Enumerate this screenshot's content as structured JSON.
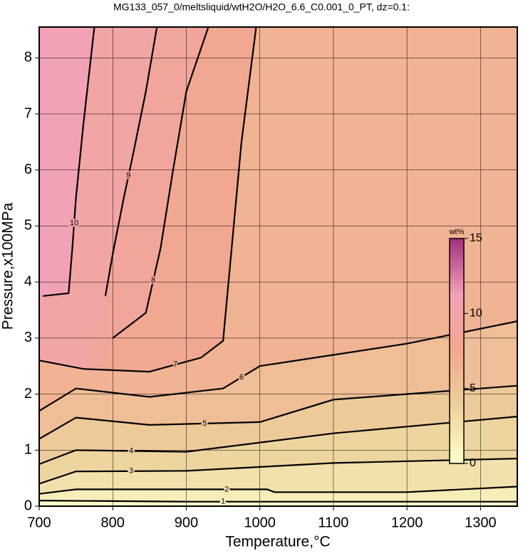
{
  "chart_data": {
    "type": "contour",
    "title": "MG133_057_0/meltsliquid/wtH2O/H2O_6.6_C0.001_0_PT, dz=0.1:",
    "x_label": "Temperature,°C",
    "y_label": "Pressure,x100MPa",
    "xlim": [
      700,
      1350
    ],
    "ylim": [
      0,
      8.55
    ],
    "xticks": [
      700,
      800,
      900,
      1000,
      1100,
      1200,
      1300
    ],
    "yticks": [
      0,
      1,
      2,
      3,
      4,
      5,
      6,
      7,
      8
    ],
    "grid": true,
    "background": "#f3a2b6",
    "colormap": [
      "#ffffcc",
      "#ecd29c",
      "#f2a890",
      "#f2a2b8",
      "#a0307e"
    ],
    "series": [
      {
        "name": "10",
        "x": [
          705,
          740,
          745,
          750,
          760,
          775
        ],
        "values": [
          3.75,
          3.8,
          4.6,
          5.5,
          6.8,
          8.55
        ]
      },
      {
        "name": "9",
        "x": [
          790,
          800,
          815,
          828,
          845,
          860
        ],
        "values": [
          3.75,
          4.5,
          5.5,
          6.3,
          7.4,
          8.55
        ]
      },
      {
        "name": "8",
        "x": [
          800,
          830,
          845,
          865,
          882,
          900,
          930
        ],
        "values": [
          3.0,
          3.3,
          3.45,
          4.6,
          6.0,
          7.4,
          8.55
        ]
      },
      {
        "name": "7",
        "x": [
          700,
          760,
          850,
          920,
          950,
          975,
          995
        ],
        "values": [
          2.6,
          2.45,
          2.4,
          2.65,
          2.95,
          6.5,
          8.55
        ]
      },
      {
        "name": "6",
        "x": [
          700,
          750,
          850,
          950,
          1000,
          1100,
          1200,
          1350
        ],
        "values": [
          1.7,
          2.1,
          1.95,
          2.1,
          2.5,
          2.7,
          2.9,
          3.3
        ]
      },
      {
        "name": "5",
        "x": [
          700,
          750,
          850,
          1000,
          1100,
          1250,
          1350
        ],
        "values": [
          1.2,
          1.58,
          1.45,
          1.5,
          1.9,
          2.05,
          2.15
        ]
      },
      {
        "name": "4",
        "x": [
          700,
          750,
          900,
          1100,
          1350
        ],
        "values": [
          0.75,
          1.0,
          0.97,
          1.3,
          1.6
        ]
      },
      {
        "name": "3",
        "x": [
          700,
          750,
          900,
          1100,
          1350
        ],
        "values": [
          0.4,
          0.62,
          0.63,
          0.77,
          0.85
        ]
      },
      {
        "name": "2",
        "x": [
          700,
          750,
          900,
          1010,
          1020,
          1200,
          1350
        ],
        "values": [
          0.22,
          0.3,
          0.3,
          0.3,
          0.25,
          0.25,
          0.35
        ]
      },
      {
        "name": "1",
        "x": [
          700,
          800,
          900,
          1000,
          1100,
          1350
        ],
        "values": [
          0.1,
          0.09,
          0.08,
          0.08,
          0.08,
          0.08
        ]
      }
    ],
    "colorbar": {
      "label": "wt%",
      "lim": [
        0,
        15
      ],
      "ticks": [
        0,
        5,
        10,
        15
      ]
    }
  }
}
